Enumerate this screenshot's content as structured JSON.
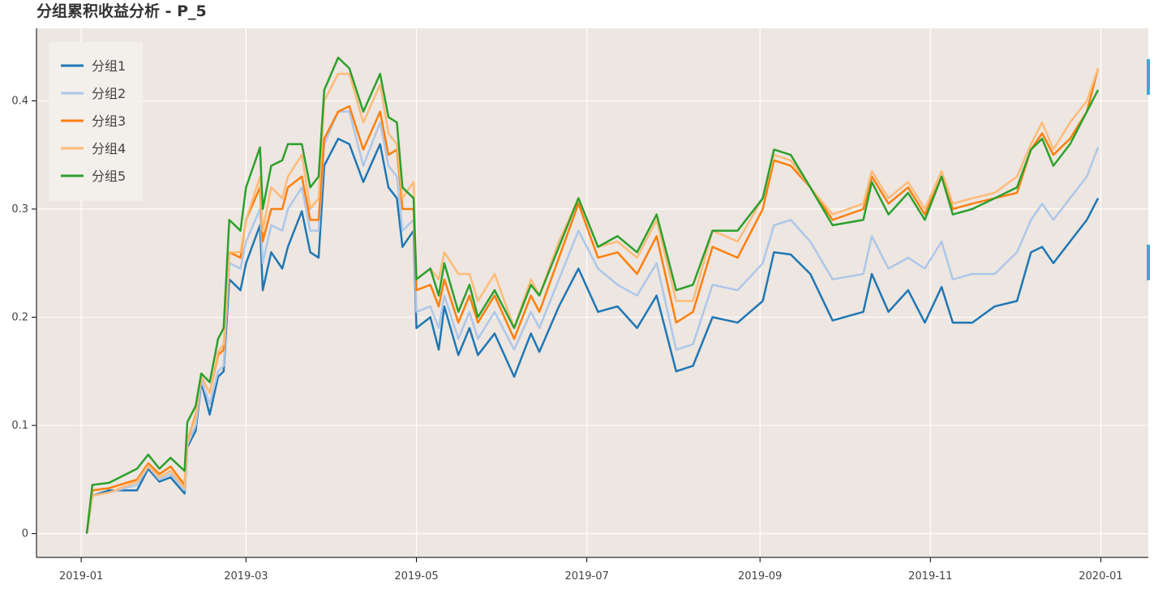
{
  "chart_data": {
    "type": "line",
    "title": "分组累积收益分析 - P_5",
    "x": [
      2,
      4,
      10,
      20,
      24,
      28,
      32,
      37,
      38,
      41,
      43,
      46,
      49,
      51,
      53,
      57,
      59,
      64,
      65,
      68,
      72,
      74,
      79,
      82,
      85,
      87,
      92,
      96,
      101,
      107,
      110,
      113,
      115,
      119,
      120,
      125,
      128,
      130,
      135,
      139,
      142,
      148,
      155,
      161,
      164,
      171,
      178,
      185,
      192,
      199,
      206,
      213,
      219,
      226,
      235,
      244,
      248,
      254,
      261,
      269,
      280,
      283,
      289,
      296,
      302,
      308,
      312,
      319,
      327,
      335,
      340,
      344,
      348,
      354,
      360,
      364
    ],
    "xlim": [
      -16,
      382
    ],
    "xticks": [
      {
        "value": 0,
        "label": "2019-01"
      },
      {
        "value": 59,
        "label": "2019-03"
      },
      {
        "value": 120,
        "label": "2019-05"
      },
      {
        "value": 181,
        "label": "2019-07"
      },
      {
        "value": 243,
        "label": "2019-09"
      },
      {
        "value": 304,
        "label": "2019-11"
      },
      {
        "value": 365,
        "label": "2020-01"
      }
    ],
    "ylim": [
      -0.022,
      0.467
    ],
    "yticks": [
      0,
      0.1,
      0.2,
      0.3,
      0.4
    ],
    "grid": true,
    "legend": "top_left",
    "series": [
      {
        "name": "分组1",
        "color": "#1f77b4",
        "values": [
          0,
          0.035,
          0.04,
          0.04,
          0.06,
          0.048,
          0.052,
          0.037,
          0.08,
          0.095,
          0.14,
          0.11,
          0.145,
          0.15,
          0.235,
          0.225,
          0.25,
          0.285,
          0.225,
          0.26,
          0.245,
          0.265,
          0.298,
          0.26,
          0.255,
          0.34,
          0.365,
          0.36,
          0.325,
          0.36,
          0.32,
          0.31,
          0.265,
          0.28,
          0.19,
          0.2,
          0.17,
          0.21,
          0.165,
          0.19,
          0.165,
          0.185,
          0.145,
          0.185,
          0.168,
          0.21,
          0.245,
          0.205,
          0.21,
          0.19,
          0.22,
          0.15,
          0.155,
          0.2,
          0.195,
          0.215,
          0.26,
          0.258,
          0.24,
          0.197,
          0.205,
          0.24,
          0.205,
          0.225,
          0.195,
          0.228,
          0.195,
          0.195,
          0.21,
          0.215,
          0.26,
          0.265,
          0.25,
          0.27,
          0.29,
          0.31
        ]
      },
      {
        "name": "分组2",
        "color": "#aec7e8",
        "values": [
          0,
          0.035,
          0.038,
          0.045,
          0.062,
          0.05,
          0.055,
          0.04,
          0.082,
          0.1,
          0.142,
          0.12,
          0.15,
          0.155,
          0.25,
          0.245,
          0.27,
          0.3,
          0.25,
          0.285,
          0.28,
          0.3,
          0.32,
          0.28,
          0.28,
          0.36,
          0.39,
          0.39,
          0.34,
          0.38,
          0.34,
          0.33,
          0.28,
          0.29,
          0.205,
          0.21,
          0.19,
          0.22,
          0.18,
          0.205,
          0.18,
          0.205,
          0.17,
          0.205,
          0.19,
          0.235,
          0.28,
          0.245,
          0.23,
          0.22,
          0.25,
          0.17,
          0.175,
          0.23,
          0.225,
          0.25,
          0.285,
          0.29,
          0.27,
          0.235,
          0.24,
          0.275,
          0.245,
          0.255,
          0.245,
          0.27,
          0.235,
          0.24,
          0.24,
          0.26,
          0.29,
          0.305,
          0.29,
          0.31,
          0.33,
          0.357
        ]
      },
      {
        "name": "分组3",
        "color": "#ff7f0e",
        "values": [
          0,
          0.04,
          0.042,
          0.05,
          0.065,
          0.055,
          0.062,
          0.045,
          0.085,
          0.11,
          0.145,
          0.13,
          0.165,
          0.17,
          0.26,
          0.255,
          0.29,
          0.32,
          0.27,
          0.3,
          0.3,
          0.32,
          0.33,
          0.29,
          0.29,
          0.365,
          0.39,
          0.395,
          0.355,
          0.39,
          0.35,
          0.355,
          0.3,
          0.3,
          0.225,
          0.23,
          0.21,
          0.235,
          0.195,
          0.22,
          0.195,
          0.22,
          0.18,
          0.22,
          0.205,
          0.255,
          0.305,
          0.255,
          0.26,
          0.24,
          0.275,
          0.195,
          0.205,
          0.265,
          0.255,
          0.3,
          0.345,
          0.34,
          0.32,
          0.29,
          0.3,
          0.33,
          0.305,
          0.32,
          0.295,
          0.33,
          0.3,
          0.305,
          0.31,
          0.315,
          0.355,
          0.37,
          0.35,
          0.365,
          0.39,
          0.43
        ]
      },
      {
        "name": "分组4",
        "color": "#ffbb78",
        "values": [
          0,
          0.035,
          0.038,
          0.048,
          0.063,
          0.052,
          0.058,
          0.042,
          0.084,
          0.108,
          0.145,
          0.13,
          0.168,
          0.175,
          0.26,
          0.26,
          0.29,
          0.33,
          0.28,
          0.32,
          0.31,
          0.33,
          0.35,
          0.3,
          0.31,
          0.4,
          0.425,
          0.425,
          0.38,
          0.415,
          0.37,
          0.36,
          0.31,
          0.325,
          0.235,
          0.245,
          0.235,
          0.26,
          0.24,
          0.24,
          0.215,
          0.24,
          0.19,
          0.235,
          0.22,
          0.27,
          0.31,
          0.265,
          0.27,
          0.255,
          0.29,
          0.215,
          0.215,
          0.28,
          0.27,
          0.31,
          0.35,
          0.345,
          0.32,
          0.295,
          0.305,
          0.335,
          0.31,
          0.325,
          0.3,
          0.335,
          0.305,
          0.31,
          0.315,
          0.33,
          0.36,
          0.38,
          0.355,
          0.38,
          0.4,
          0.43
        ]
      },
      {
        "name": "分组5",
        "color": "#2ca02c",
        "values": [
          0,
          0.045,
          0.047,
          0.06,
          0.073,
          0.06,
          0.07,
          0.058,
          0.103,
          0.118,
          0.148,
          0.14,
          0.18,
          0.19,
          0.29,
          0.28,
          0.32,
          0.357,
          0.3,
          0.34,
          0.345,
          0.36,
          0.36,
          0.32,
          0.33,
          0.41,
          0.44,
          0.43,
          0.39,
          0.425,
          0.385,
          0.38,
          0.32,
          0.31,
          0.235,
          0.245,
          0.22,
          0.25,
          0.205,
          0.23,
          0.2,
          0.225,
          0.19,
          0.23,
          0.22,
          0.265,
          0.31,
          0.265,
          0.275,
          0.26,
          0.295,
          0.225,
          0.23,
          0.28,
          0.28,
          0.31,
          0.355,
          0.35,
          0.32,
          0.285,
          0.29,
          0.325,
          0.295,
          0.315,
          0.29,
          0.33,
          0.295,
          0.3,
          0.31,
          0.32,
          0.355,
          0.365,
          0.34,
          0.36,
          0.39,
          0.41
        ]
      }
    ]
  }
}
